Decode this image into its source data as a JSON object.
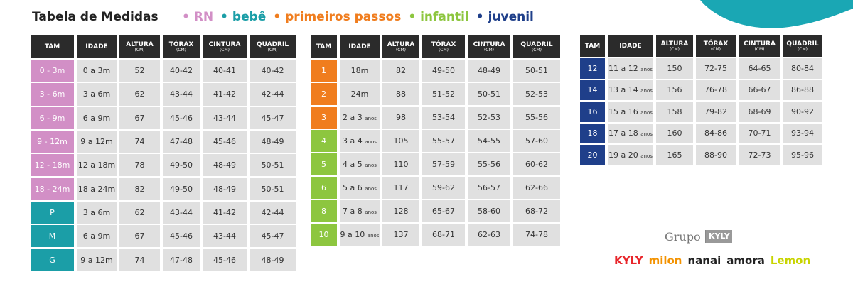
{
  "title": "Tabela de Medidas",
  "legend": [
    {
      "label": "• RN",
      "color": "#d28fc6"
    },
    {
      "label": "• bebê",
      "color": "#1b9ea7"
    },
    {
      "label": "• primeiros passos",
      "color": "#f07d1e"
    },
    {
      "label": "• infantil",
      "color": "#8dc63f"
    },
    {
      "label": "• juvenil",
      "color": "#1f3f8a"
    }
  ],
  "tables": [
    {
      "headers": [
        {
          "label": "TAM"
        },
        {
          "label": "IDADE"
        },
        {
          "label": "ALTURA",
          "unit": "(CM)"
        },
        {
          "label": "TÓRAX",
          "unit": "(CM)"
        },
        {
          "label": "CINTURA",
          "unit": "(CM)"
        },
        {
          "label": "QUADRIL",
          "unit": "(CM)"
        }
      ],
      "rows": [
        {
          "tam": "0 - 3m",
          "color": "#d28fc6",
          "idade": "0 a 3m",
          "altura": 52,
          "torax": "40-42",
          "cintura": "40-41",
          "quadril": "40-42"
        },
        {
          "tam": "3 - 6m",
          "color": "#d28fc6",
          "idade": "3 a 6m",
          "altura": 62,
          "torax": "43-44",
          "cintura": "41-42",
          "quadril": "42-44"
        },
        {
          "tam": "6 - 9m",
          "color": "#d28fc6",
          "idade": "6 a 9m",
          "altura": 67,
          "torax": "45-46",
          "cintura": "43-44",
          "quadril": "45-47"
        },
        {
          "tam": "9 - 12m",
          "color": "#d28fc6",
          "idade": "9 a 12m",
          "altura": 74,
          "torax": "47-48",
          "cintura": "45-46",
          "quadril": "48-49"
        },
        {
          "tam": "12 - 18m",
          "color": "#d28fc6",
          "idade": "12 a 18m",
          "altura": 78,
          "torax": "49-50",
          "cintura": "48-49",
          "quadril": "50-51"
        },
        {
          "tam": "18 - 24m",
          "color": "#d28fc6",
          "idade": "18 a 24m",
          "altura": 82,
          "torax": "49-50",
          "cintura": "48-49",
          "quadril": "50-51"
        },
        {
          "tam": "P",
          "color": "#1b9ea7",
          "idade": "3 a 6m",
          "altura": 62,
          "torax": "43-44",
          "cintura": "41-42",
          "quadril": "42-44"
        },
        {
          "tam": "M",
          "color": "#1b9ea7",
          "idade": "6 a 9m",
          "altura": 67,
          "torax": "45-46",
          "cintura": "43-44",
          "quadril": "45-47"
        },
        {
          "tam": "G",
          "color": "#1b9ea7",
          "idade": "9 a 12m",
          "altura": 74,
          "torax": "47-48",
          "cintura": "45-46",
          "quadril": "48-49"
        }
      ]
    },
    {
      "headers": [
        {
          "label": "TAM"
        },
        {
          "label": "IDADE"
        },
        {
          "label": "ALTURA",
          "unit": "(CM)"
        },
        {
          "label": "TÓRAX",
          "unit": "(CM)"
        },
        {
          "label": "CINTURA",
          "unit": "(CM)"
        },
        {
          "label": "QUADRIL",
          "unit": "(CM)"
        }
      ],
      "rows": [
        {
          "tam": "1",
          "color": "#f07d1e",
          "idade": "18m",
          "altura": 82,
          "torax": "49-50",
          "cintura": "48-49",
          "quadril": "50-51"
        },
        {
          "tam": "2",
          "color": "#f07d1e",
          "idade": "24m",
          "altura": 88,
          "torax": "51-52",
          "cintura": "50-51",
          "quadril": "52-53"
        },
        {
          "tam": "3",
          "color": "#f07d1e",
          "idade": "2 a 3",
          "anos": "anos",
          "altura": 98,
          "torax": "53-54",
          "cintura": "52-53",
          "quadril": "55-56"
        },
        {
          "tam": "4",
          "color": "#8dc63f",
          "idade": "3 a 4",
          "anos": "anos",
          "altura": 105,
          "torax": "55-57",
          "cintura": "54-55",
          "quadril": "57-60"
        },
        {
          "tam": "5",
          "color": "#8dc63f",
          "idade": "4 a 5",
          "anos": "anos",
          "altura": 110,
          "torax": "57-59",
          "cintura": "55-56",
          "quadril": "60-62"
        },
        {
          "tam": "6",
          "color": "#8dc63f",
          "idade": "5 a 6",
          "anos": "anos",
          "altura": 117,
          "torax": "59-62",
          "cintura": "56-57",
          "quadril": "62-66"
        },
        {
          "tam": "8",
          "color": "#8dc63f",
          "idade": "7 a 8",
          "anos": "anos",
          "altura": 128,
          "torax": "65-67",
          "cintura": "58-60",
          "quadril": "68-72"
        },
        {
          "tam": "10",
          "color": "#8dc63f",
          "idade": "9 a 10",
          "anos": "anos",
          "altura": 137,
          "torax": "68-71",
          "cintura": "62-63",
          "quadril": "74-78"
        }
      ]
    },
    {
      "headers": [
        {
          "label": "TAM"
        },
        {
          "label": "IDADE"
        },
        {
          "label": "ALTURA",
          "unit": "(CM)"
        },
        {
          "label": "TÓRAX",
          "unit": "(CM)"
        },
        {
          "label": "CINTURA",
          "unit": "(CM)"
        },
        {
          "label": "QUADRIL",
          "unit": "(CM)"
        }
      ],
      "rows": [
        {
          "tam": "12",
          "color": "#1f3f8a",
          "idade": "11 a 12",
          "anos": "anos",
          "altura": 150,
          "torax": "72-75",
          "cintura": "64-65",
          "quadril": "80-84"
        },
        {
          "tam": "14",
          "color": "#1f3f8a",
          "idade": "13 a 14",
          "anos": "anos",
          "altura": 156,
          "torax": "76-78",
          "cintura": "66-67",
          "quadril": "86-88"
        },
        {
          "tam": "16",
          "color": "#1f3f8a",
          "idade": "15 a 16",
          "anos": "anos",
          "altura": 158,
          "torax": "79-82",
          "cintura": "68-69",
          "quadril": "90-92"
        },
        {
          "tam": "18",
          "color": "#1f3f8a",
          "idade": "17 a 18",
          "anos": "anos",
          "altura": 160,
          "torax": "84-86",
          "cintura": "70-71",
          "quadril": "93-94"
        },
        {
          "tam": "20",
          "color": "#1f3f8a",
          "idade": "19 a 20",
          "anos": "anos",
          "altura": 165,
          "torax": "88-90",
          "cintura": "72-73",
          "quadril": "95-96"
        }
      ]
    }
  ],
  "logos": {
    "group": "Grupo",
    "group_brand": "KYLY",
    "brands": [
      {
        "label": "KYLY",
        "color": "#e8262b"
      },
      {
        "label": "milon",
        "color": "#f39200"
      },
      {
        "label": "nanai",
        "color": "#222222"
      },
      {
        "label": "amora",
        "color": "#222222"
      },
      {
        "label": "Lemon",
        "color": "#c8d400"
      }
    ]
  }
}
